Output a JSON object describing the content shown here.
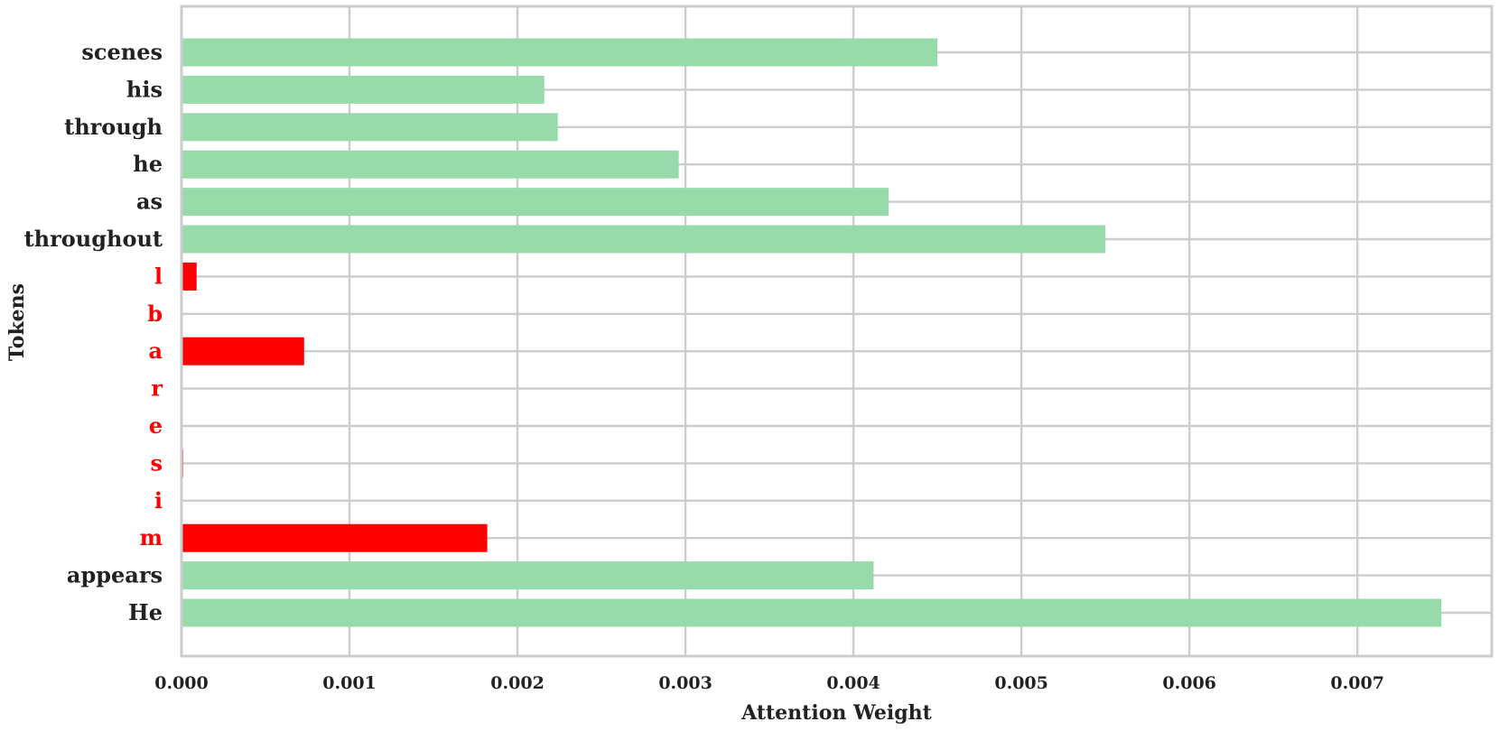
{
  "chart_data": {
    "type": "bar",
    "orientation": "horizontal",
    "title": "",
    "xlabel": "Attention Weight",
    "ylabel": "Tokens",
    "xlim": [
      0,
      0.0078
    ],
    "xticks": [
      0.0,
      0.001,
      0.002,
      0.003,
      0.004,
      0.005,
      0.006,
      0.007
    ],
    "xtick_labels": [
      "0.000",
      "0.001",
      "0.002",
      "0.003",
      "0.004",
      "0.005",
      "0.006",
      "0.007"
    ],
    "grid": true,
    "colors": {
      "normal": "#98dbaa",
      "highlight": "#ff0000",
      "normal_label": "#222222",
      "highlight_label": "#ff0000",
      "grid": "#cccccc",
      "frame": "#cccccc"
    },
    "categories": [
      "He",
      "appears",
      "m",
      "i",
      "s",
      "e",
      "r",
      "a",
      "b",
      "l",
      "throughout",
      "as",
      "he",
      "through",
      "his",
      "scenes"
    ],
    "values": [
      0.0075,
      0.00412,
      0.00182,
      0.0,
      1e-05,
      0.0,
      0.0,
      0.00073,
      0.0,
      9e-05,
      0.0055,
      0.00421,
      0.00296,
      0.00224,
      0.00216,
      0.0045
    ],
    "highlighted": [
      false,
      false,
      true,
      true,
      true,
      true,
      true,
      true,
      true,
      true,
      false,
      false,
      false,
      false,
      false,
      false
    ]
  }
}
